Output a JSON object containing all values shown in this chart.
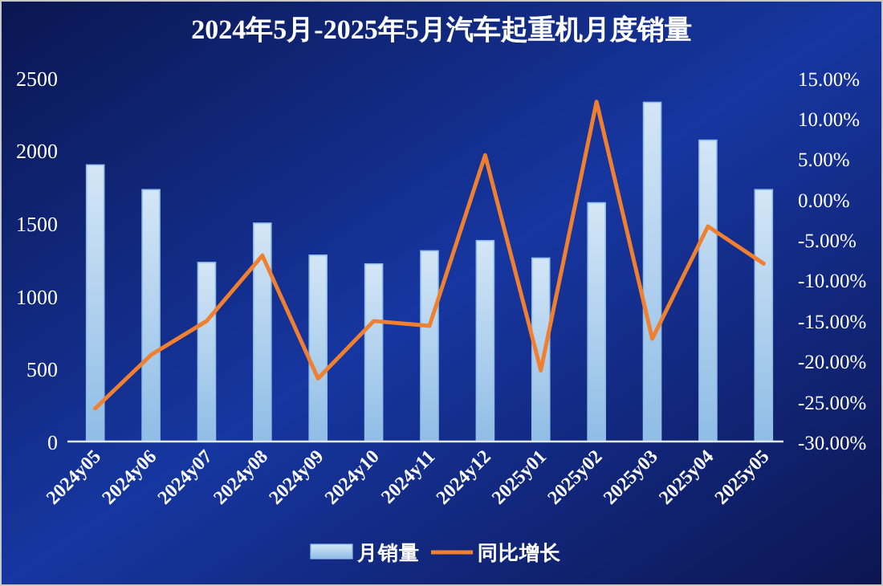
{
  "chart_data": {
    "type": "bar",
    "title": "2024年5月-2025年5月汽车起重机月度销量",
    "categories": [
      "2024y05",
      "2024y06",
      "2024y07",
      "2024y08",
      "2024y09",
      "2024y10",
      "2024y11",
      "2024y12",
      "2025y01",
      "2025y02",
      "2025y03",
      "2025y04",
      "2025y05"
    ],
    "series": [
      {
        "name": "月销量",
        "color": "#8fbde6",
        "values": [
          1900,
          1730,
          1230,
          1500,
          1280,
          1220,
          1310,
          1380,
          1260,
          1640,
          2330,
          2070,
          1730
        ]
      },
      {
        "name": "同比增长",
        "type": "line",
        "axis": "y2",
        "color": "#f08030",
        "values": [
          -25.9,
          -19.3,
          -15.1,
          -7.0,
          -22.2,
          -15.1,
          -15.7,
          5.4,
          -21.2,
          12.0,
          -17.3,
          -3.4,
          -8.0
        ]
      }
    ],
    "ylim": [
      0,
      2500
    ],
    "yticks": [
      0,
      500,
      1000,
      1500,
      2000,
      2500
    ],
    "y2lim": [
      -30,
      15
    ],
    "y2ticks": [
      {
        "value": -30,
        "label": "-30.00%"
      },
      {
        "value": -25,
        "label": "-25.00%"
      },
      {
        "value": -20,
        "label": "-20.00%"
      },
      {
        "value": -15,
        "label": "-15.00%"
      },
      {
        "value": -10,
        "label": "-10.00%"
      },
      {
        "value": -5,
        "label": "-5.00%"
      },
      {
        "value": 0,
        "label": "0.00%"
      },
      {
        "value": 5,
        "label": "5.00%"
      },
      {
        "value": 10,
        "label": "10.00%"
      },
      {
        "value": 15,
        "label": "15.00%"
      }
    ],
    "grid": false,
    "legend": "bottom",
    "marker": "none",
    "line_style": "solid"
  }
}
